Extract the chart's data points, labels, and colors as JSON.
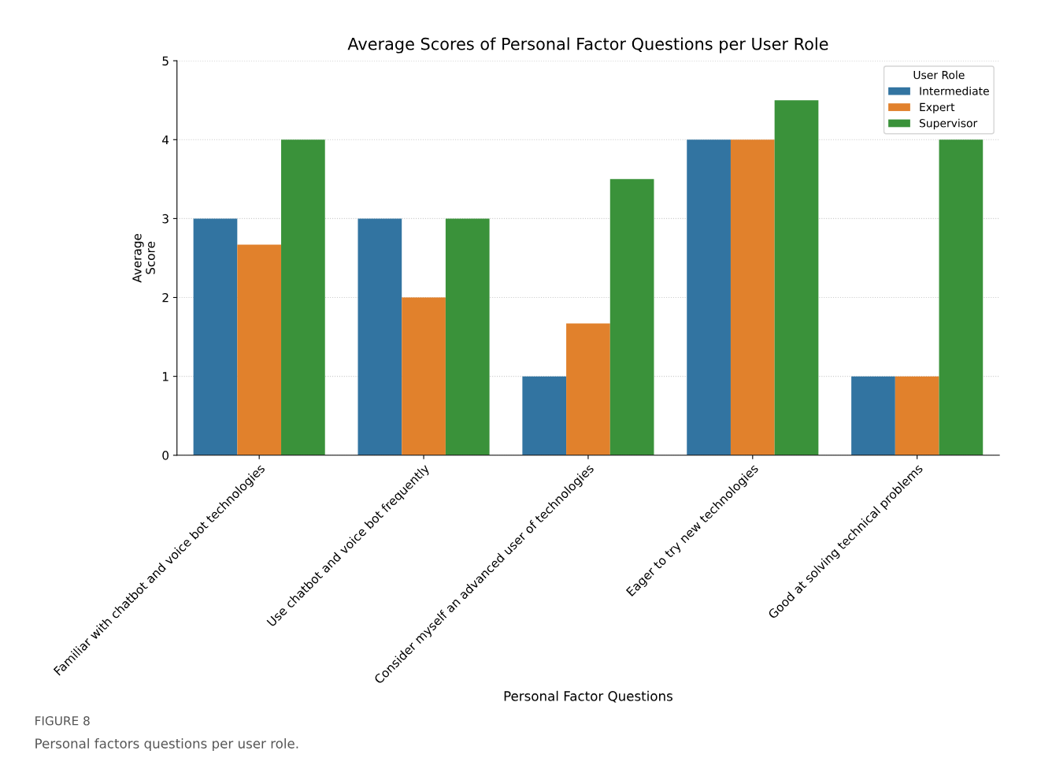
{
  "chart_data": {
    "type": "bar",
    "title": "Average Scores of Personal Factor Questions per User Role",
    "xlabel": "Personal Factor Questions",
    "ylabel": "Average\nScore",
    "legend_title": "User Role",
    "categories": [
      "Familiar with chatbot and voice bot technologies",
      "Use chatbot and voice bot frequently",
      "Consider myself an advanced user of technologies",
      "Eager to try new technologies",
      "Good at solving technical problems"
    ],
    "series": [
      {
        "name": "Intermediate",
        "color": "#3274a1",
        "values": [
          3,
          3,
          1,
          4,
          1
        ]
      },
      {
        "name": "Expert",
        "color": "#e1812c",
        "values": [
          2.67,
          2,
          1.67,
          4,
          1
        ]
      },
      {
        "name": "Supervisor",
        "color": "#3a923a",
        "values": [
          4,
          3,
          3.5,
          4.5,
          4
        ]
      }
    ],
    "ylim": [
      0,
      5
    ],
    "yticks": [
      0,
      1,
      2,
      3,
      4,
      5
    ],
    "grid": "y",
    "legend": "top right",
    "annotations": [
      "FIGURE 8",
      "Personal factors questions per user role."
    ]
  }
}
